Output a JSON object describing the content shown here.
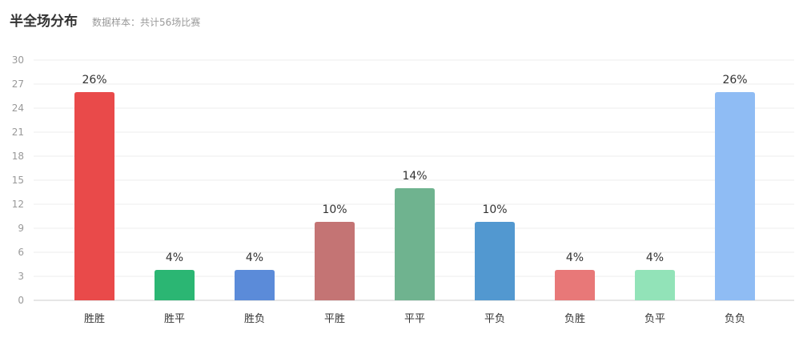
{
  "header": {
    "title": "半全场分布",
    "subtitle": "数据样本：共计56场比赛"
  },
  "chart_data": {
    "type": "bar",
    "categories": [
      "胜胜",
      "胜平",
      "胜负",
      "平胜",
      "平平",
      "平负",
      "负胜",
      "负平",
      "负负"
    ],
    "values": [
      26,
      3.8,
      3.8,
      9.8,
      14,
      9.8,
      3.8,
      3.8,
      26
    ],
    "data_labels": [
      "26%",
      "4%",
      "4%",
      "10%",
      "14%",
      "10%",
      "4%",
      "4%",
      "26%"
    ],
    "colors": [
      "#e94a4a",
      "#2bb673",
      "#5b8bd9",
      "#c47474",
      "#6fb38f",
      "#5298d0",
      "#e87878",
      "#92e3b8",
      "#8fbcf4"
    ],
    "ylim": [
      0,
      30
    ],
    "yticks": [
      0,
      3,
      6,
      9,
      12,
      15,
      18,
      21,
      24,
      27,
      30
    ],
    "grid": true,
    "xlabel": "",
    "ylabel": ""
  }
}
